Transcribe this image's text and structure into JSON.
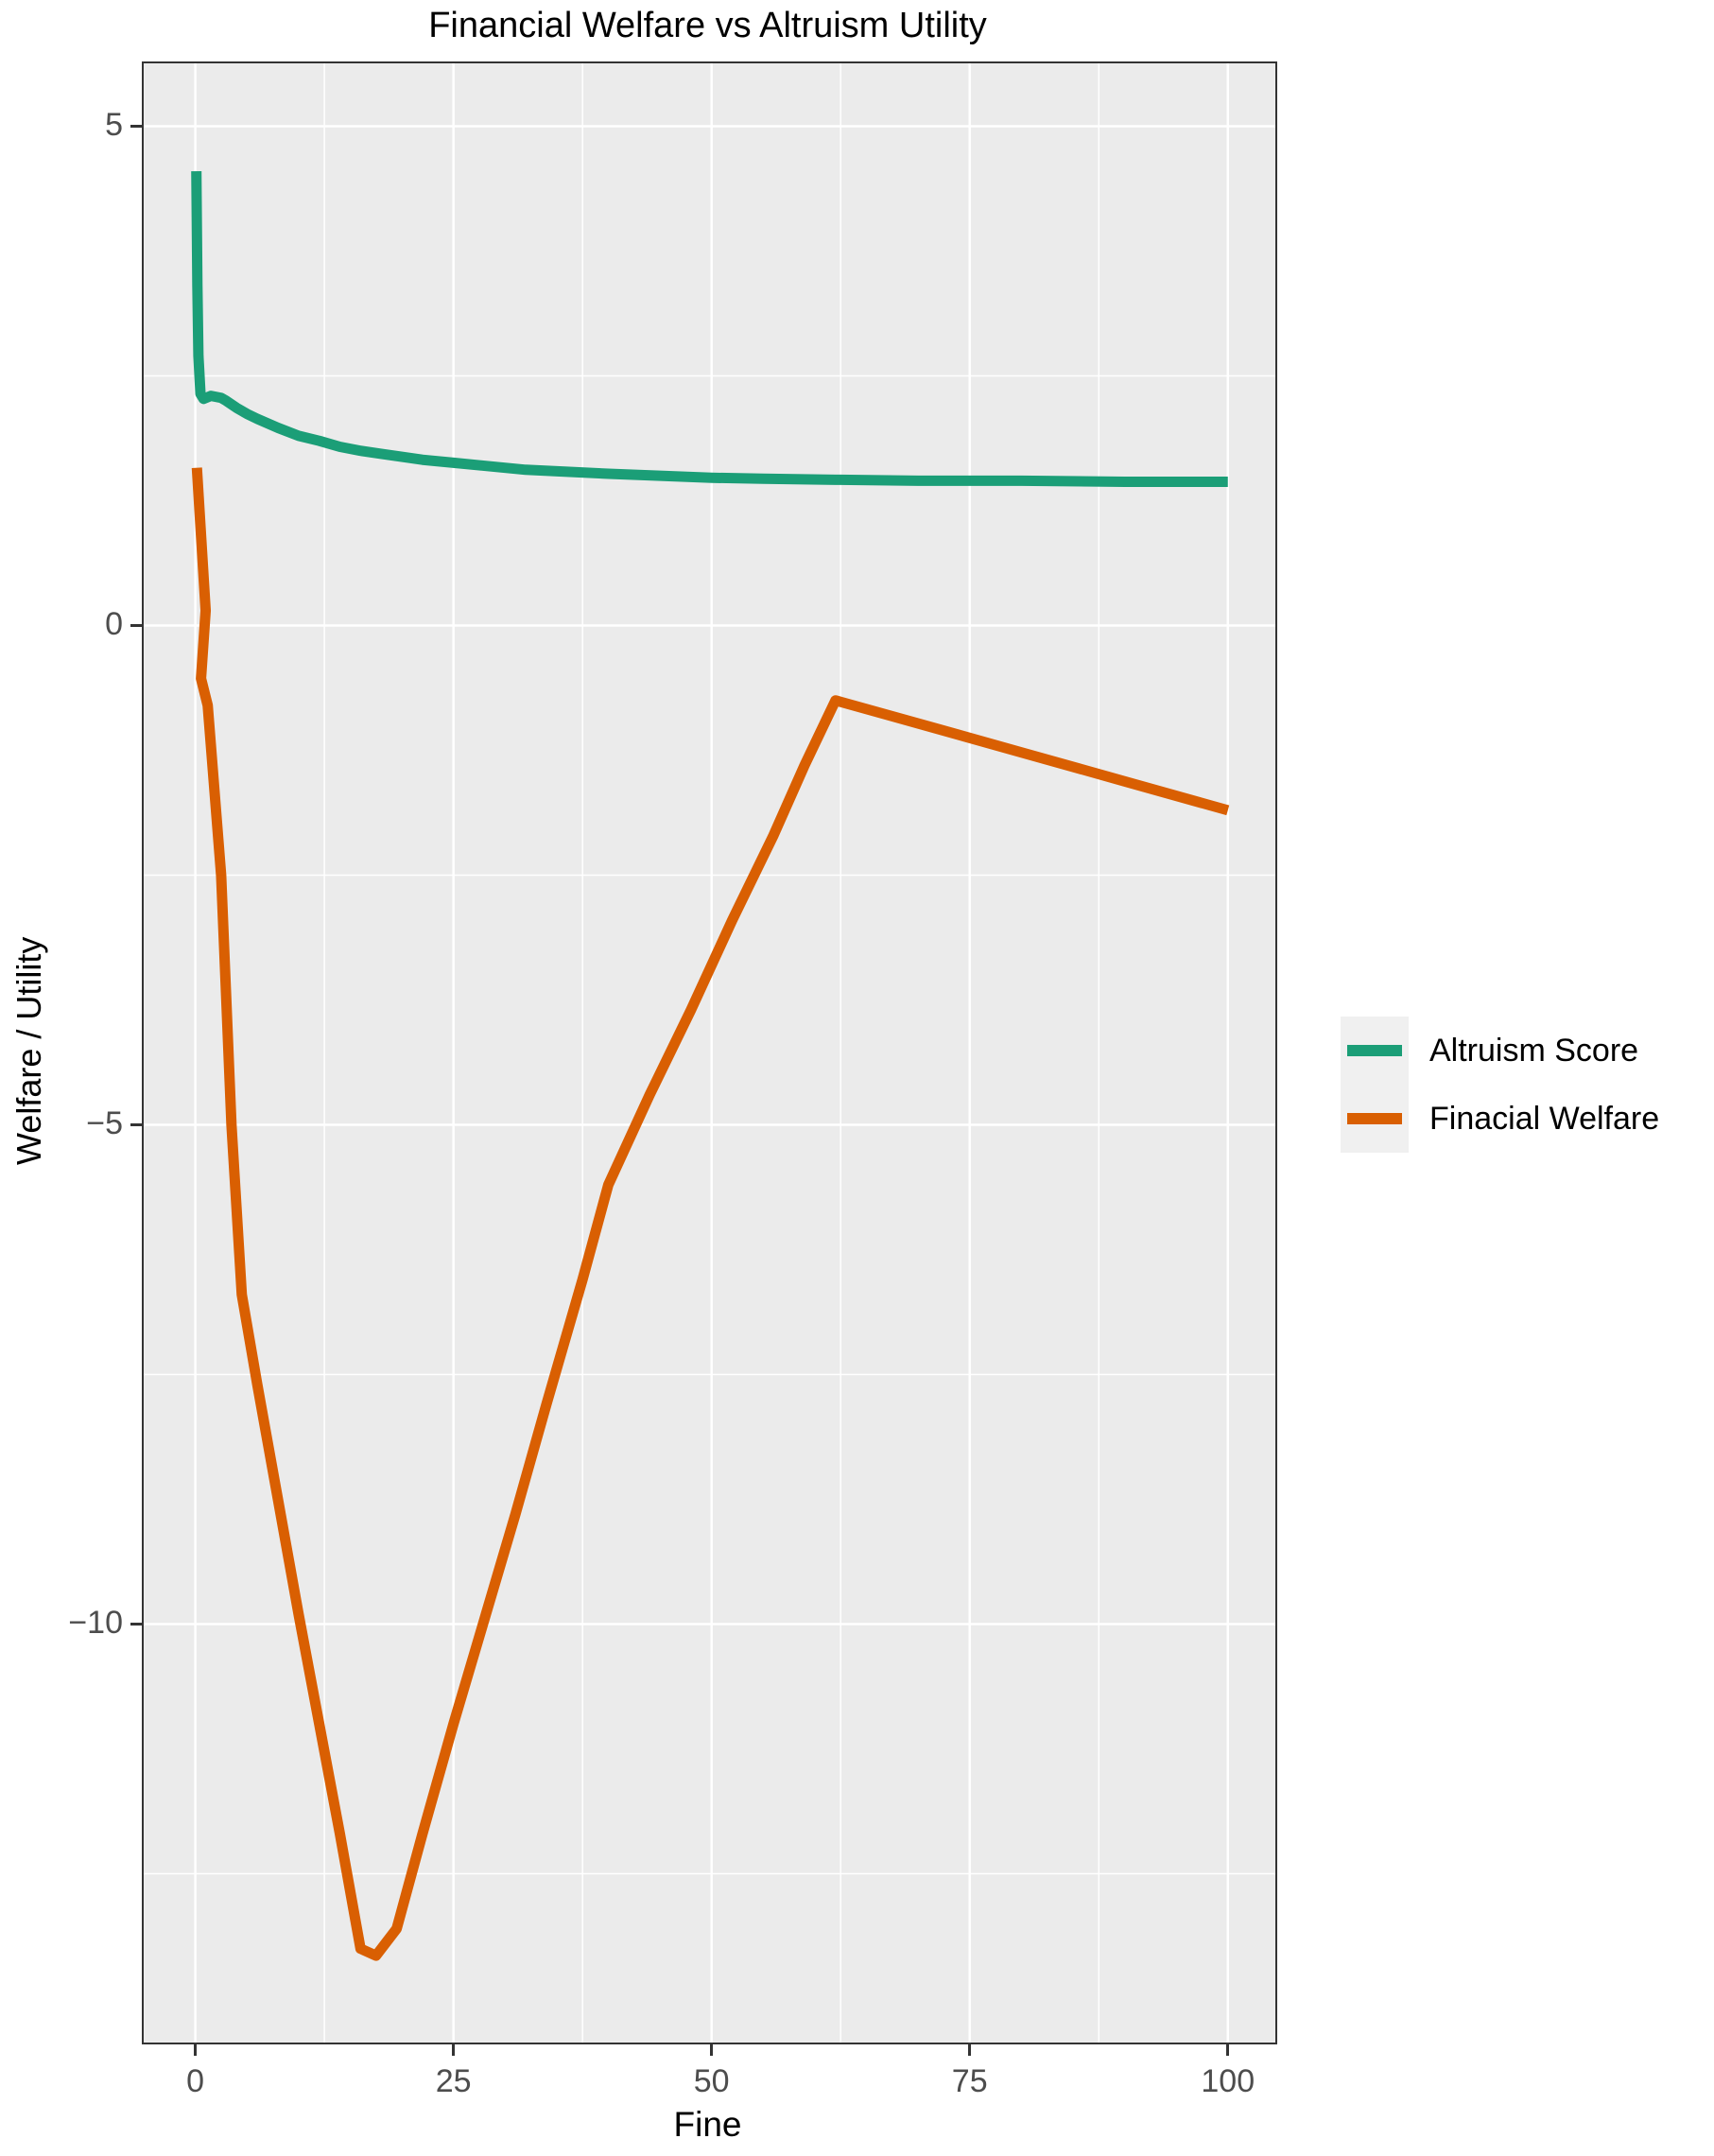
{
  "title": "Financial Welfare vs Altruism Utility",
  "chart_data": {
    "type": "line",
    "title": "Financial Welfare vs Altruism Utility",
    "xlabel": "Fine",
    "ylabel": "Welfare / Utility",
    "xlim": [
      -5,
      104.6
    ],
    "ylim": [
      -14.19,
      5.63
    ],
    "grid": true,
    "legend_position": "right",
    "panel_bg": "#EBEBEB",
    "grid_color": "#FFFFFF",
    "x_major_ticks": [
      0,
      25,
      50,
      75,
      100
    ],
    "x_tick_labels": [
      "0",
      "25",
      "50",
      "75",
      "100"
    ],
    "x_minor_ticks": [
      12.5,
      37.5,
      62.5,
      87.5
    ],
    "y_major_ticks": [
      5,
      0,
      -5,
      -10
    ],
    "y_tick_labels": [
      "5",
      "0",
      "−5",
      "−10"
    ],
    "y_minor_ticks": [
      2.5,
      -2.5,
      -7.5,
      -12.5
    ],
    "series": [
      {
        "name": "Altruism Score",
        "color": "#1B9E77",
        "points": [
          [
            0.1,
            4.55
          ],
          [
            0.2,
            3.4
          ],
          [
            0.3,
            2.7
          ],
          [
            0.5,
            2.32
          ],
          [
            0.8,
            2.27
          ],
          [
            1.5,
            2.3
          ],
          [
            2.5,
            2.28
          ],
          [
            3,
            2.25
          ],
          [
            4,
            2.18
          ],
          [
            5,
            2.12
          ],
          [
            6,
            2.07
          ],
          [
            8,
            1.98
          ],
          [
            10,
            1.9
          ],
          [
            12,
            1.85
          ],
          [
            14,
            1.79
          ],
          [
            16,
            1.75
          ],
          [
            18,
            1.72
          ],
          [
            20,
            1.69
          ],
          [
            22,
            1.66
          ],
          [
            25,
            1.63
          ],
          [
            28,
            1.6
          ],
          [
            32,
            1.56
          ],
          [
            36,
            1.54
          ],
          [
            40,
            1.52
          ],
          [
            45,
            1.5
          ],
          [
            50,
            1.48
          ],
          [
            55,
            1.47
          ],
          [
            62,
            1.46
          ],
          [
            70,
            1.45
          ],
          [
            80,
            1.45
          ],
          [
            90,
            1.44
          ],
          [
            100,
            1.44
          ]
        ]
      },
      {
        "name": "Finacial Welfare",
        "color": "#D95F02",
        "points": [
          [
            0.15,
            1.58
          ],
          [
            1.0,
            0.15
          ],
          [
            0.55,
            -0.53
          ],
          [
            1.2,
            -0.8
          ],
          [
            2.5,
            -2.5
          ],
          [
            3.5,
            -5.0
          ],
          [
            4.5,
            -6.7
          ],
          [
            6,
            -7.6
          ],
          [
            8,
            -8.75
          ],
          [
            10,
            -9.9
          ],
          [
            12,
            -11.0
          ],
          [
            14,
            -12.1
          ],
          [
            16,
            -13.25
          ],
          [
            17.5,
            -13.32
          ],
          [
            19.5,
            -13.05
          ],
          [
            22,
            -12.1
          ],
          [
            25,
            -11.0
          ],
          [
            28,
            -9.95
          ],
          [
            31,
            -8.9
          ],
          [
            34,
            -7.8
          ],
          [
            37.5,
            -6.55
          ],
          [
            40,
            -5.6
          ],
          [
            44,
            -4.7
          ],
          [
            48,
            -3.85
          ],
          [
            52,
            -2.95
          ],
          [
            56,
            -2.1
          ],
          [
            59,
            -1.4
          ],
          [
            62,
            -0.75
          ],
          [
            70,
            -0.98
          ],
          [
            80,
            -1.27
          ],
          [
            90,
            -1.56
          ],
          [
            100,
            -1.85
          ]
        ]
      }
    ]
  },
  "legend": {
    "items": [
      {
        "label": "Altruism Score",
        "color": "#1B9E77"
      },
      {
        "label": "Finacial Welfare",
        "color": "#D95F02"
      }
    ]
  }
}
